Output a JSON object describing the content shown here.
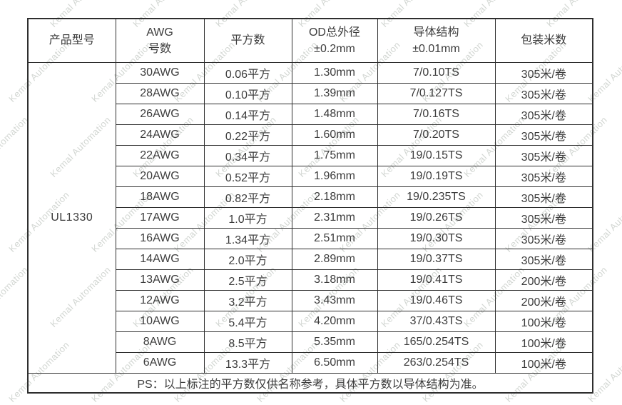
{
  "watermark": {
    "text": "Kemal Automation",
    "color": "#949d94"
  },
  "colors": {
    "text": "#3c3c3c",
    "border": "#2e2e2e",
    "background": "#ffffff"
  },
  "table": {
    "headers": [
      "产品型号",
      "AWG\n号数",
      "平方数",
      "OD总外径\n±0.2mm",
      "导体结构\n±0.01mm",
      "包装米数"
    ],
    "product_model": "UL1330",
    "rows": [
      [
        "30AWG",
        "0.06平方",
        "1.30mm",
        "7/0.10TS",
        "305米/卷"
      ],
      [
        "28AWG",
        "0.10平方",
        "1.39mm",
        "7/0.127TS",
        "305米/卷"
      ],
      [
        "26AWG",
        "0.14平方",
        "1.48mm",
        "7/0.16TS",
        "305米/卷"
      ],
      [
        "24AWG",
        "0.22平方",
        "1.60mm",
        "7/0.20TS",
        "305米/卷"
      ],
      [
        "22AWG",
        "0.34平方",
        "1.75mm",
        "19/0.15TS",
        "305米/卷"
      ],
      [
        "20AWG",
        "0.52平方",
        "1.96mm",
        "19/0.19TS",
        "305米/卷"
      ],
      [
        "18AWG",
        "0.82平方",
        "2.18mm",
        "19/0.235TS",
        "305米/卷"
      ],
      [
        "17AWG",
        "1.0平方",
        "2.31mm",
        "19/0.26TS",
        "305米/卷"
      ],
      [
        "16AWG",
        "1.34平方",
        "2.51mm",
        "19/0.30TS",
        "305米/卷"
      ],
      [
        "14AWG",
        "2.0平方",
        "2.89mm",
        "19/0.37TS",
        "305米/卷"
      ],
      [
        "13AWG",
        "2.5平方",
        "3.18mm",
        "19/0.41TS",
        "200米/卷"
      ],
      [
        "12AWG",
        "3.2平方",
        "3.43mm",
        "19/0.46TS",
        "200米/卷"
      ],
      [
        "10AWG",
        "5.4平方",
        "4.20mm",
        "37/0.43TS",
        "100米/卷"
      ],
      [
        "8AWG",
        "8.5平方",
        "5.35mm",
        "165/0.254TS",
        "100米/卷"
      ],
      [
        "6AWG",
        "13.3平方",
        "6.50mm",
        "263/0.254TS",
        "100米/卷"
      ]
    ],
    "footnote": "PS：以上标注的平方数仅供名称参考，具体平方数以导体结构为准。"
  }
}
